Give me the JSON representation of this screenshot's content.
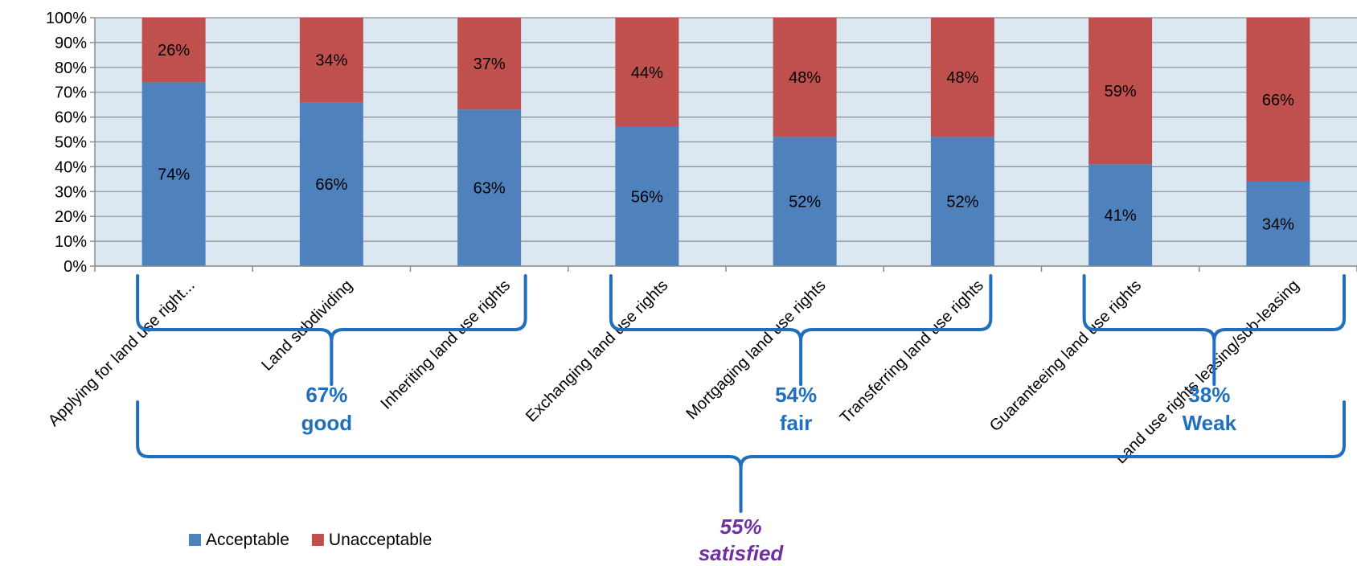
{
  "chart_data": {
    "type": "bar",
    "stacked": true,
    "categories": [
      "Applying for land use right...",
      "Land subdividing",
      "Inheriting land use rights",
      "Exchanging land use rights",
      "Mortgaging land use rights",
      "Transferring land use rights",
      "Guaranteeing land use rights",
      "Land use rights leasing/sub-leasing"
    ],
    "series": [
      {
        "name": "Acceptable",
        "color": "#4f81bd",
        "values": [
          74,
          66,
          63,
          56,
          52,
          52,
          41,
          34
        ]
      },
      {
        "name": "Unacceptable",
        "color": "#c0504d",
        "values": [
          26,
          34,
          37,
          44,
          48,
          48,
          59,
          66
        ]
      }
    ],
    "ylim": [
      0,
      100
    ],
    "y_ticks": [
      "0%",
      "10%",
      "20%",
      "30%",
      "40%",
      "50%",
      "60%",
      "70%",
      "80%",
      "90%",
      "100%"
    ],
    "grid": true,
    "plot_background": "#dbe8f2",
    "legend": "bottom-left",
    "annotations": {
      "groups": [
        {
          "value": "67%",
          "label": "good",
          "from": 0,
          "to": 2
        },
        {
          "value": "54%",
          "label": "fair",
          "from": 3,
          "to": 5
        },
        {
          "value": "38%",
          "label": "Weak",
          "from": 6,
          "to": 7
        }
      ],
      "overall": {
        "value": "55%",
        "label": "satisfied"
      },
      "group_color": "#1f6fbf",
      "overall_color": "#7030a0"
    }
  }
}
